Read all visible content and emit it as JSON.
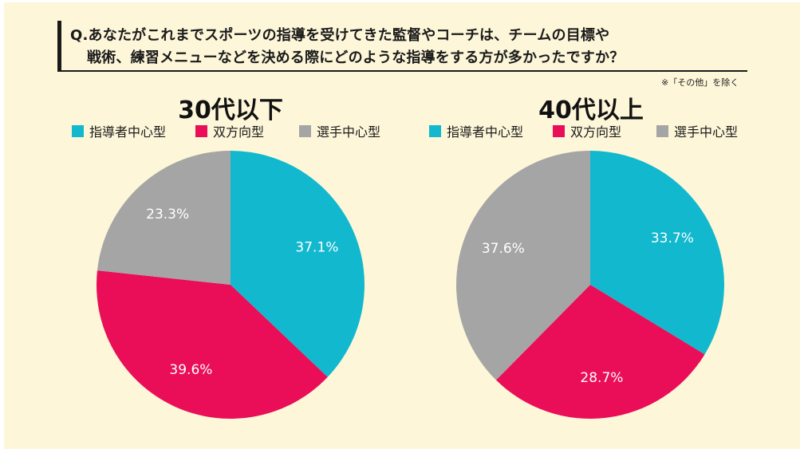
{
  "question": {
    "line1": "Q.あなたがこれまでスポーツの指導を受けてきた監督やコーチは、チームの目標や",
    "line2": "戦術、練習メニューなどを決める際にどのような指導をする方が多かったですか？"
  },
  "note": "※「その他」を除く",
  "chart_data": [
    {
      "type": "pie",
      "title": "30代以下",
      "legend": [
        "指導者中心型",
        "双方向型",
        "選手中心型"
      ],
      "colors": [
        "#12b8cd",
        "#ea0d58",
        "#a5a5a5"
      ],
      "values": [
        37.1,
        39.6,
        23.3
      ],
      "labels": [
        "37.1%",
        "39.6%",
        "23.3%"
      ]
    },
    {
      "type": "pie",
      "title": "40代以上",
      "legend": [
        "指導者中心型",
        "双方向型",
        "選手中心型"
      ],
      "colors": [
        "#12b8cd",
        "#ea0d58",
        "#a5a5a5"
      ],
      "values": [
        33.7,
        28.7,
        37.6
      ],
      "labels": [
        "33.7%",
        "28.7%",
        "37.6%"
      ]
    }
  ]
}
